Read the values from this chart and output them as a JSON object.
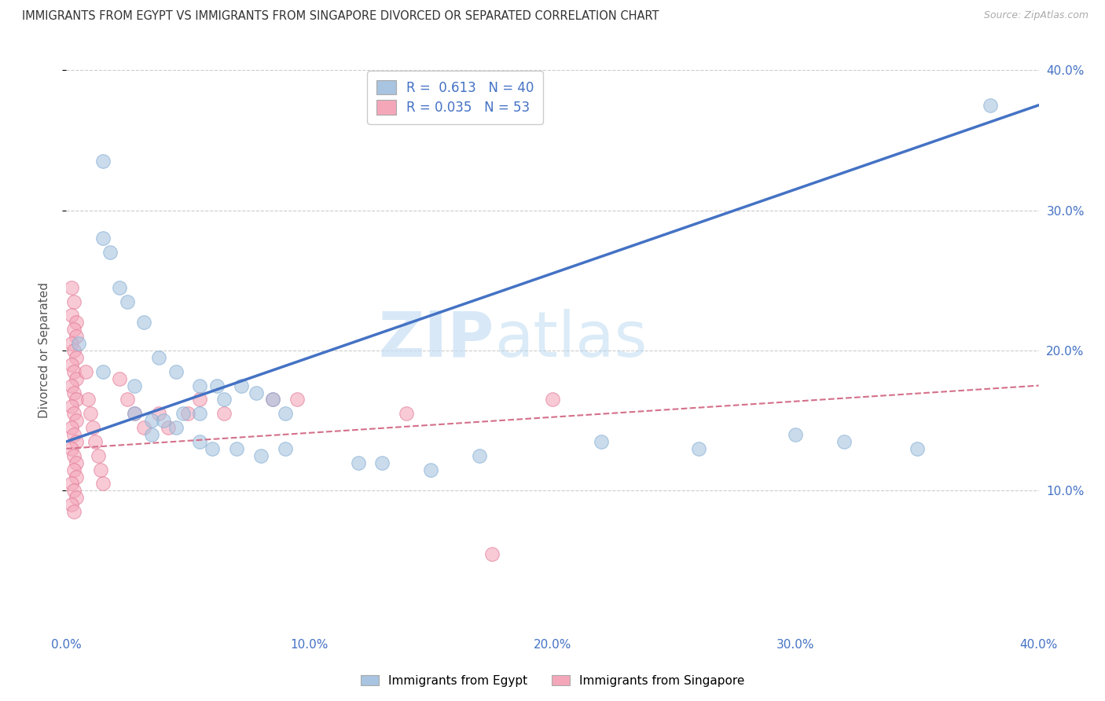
{
  "title": "IMMIGRANTS FROM EGYPT VS IMMIGRANTS FROM SINGAPORE DIVORCED OR SEPARATED CORRELATION CHART",
  "source": "Source: ZipAtlas.com",
  "ylabel": "Divorced or Separated",
  "xlim": [
    0.0,
    0.4
  ],
  "ylim": [
    0.0,
    0.4
  ],
  "xticks": [
    0.0,
    0.1,
    0.2,
    0.3,
    0.4
  ],
  "yticks": [
    0.1,
    0.2,
    0.3,
    0.4
  ],
  "xticklabels": [
    "0.0%",
    "10.0%",
    "20.0%",
    "30.0%",
    "40.0%"
  ],
  "yticklabels": [
    "10.0%",
    "20.0%",
    "30.0%",
    "40.0%"
  ],
  "egypt_color": "#a8c4e0",
  "egypt_edge_color": "#7aa8d0",
  "singapore_color": "#f4a7b9",
  "singapore_edge_color": "#e07090",
  "egypt_line_color": "#4472c4",
  "singapore_line_color": "#d4708a",
  "egypt_R": 0.613,
  "egypt_N": 40,
  "singapore_R": 0.035,
  "singapore_N": 53,
  "watermark_zip": "ZIP",
  "watermark_atlas": "atlas",
  "background_color": "#ffffff",
  "grid_color": "#cccccc",
  "tick_color": "#4472c4",
  "egypt_line": [
    [
      0.0,
      0.135
    ],
    [
      0.4,
      0.375
    ]
  ],
  "singapore_line": [
    [
      0.0,
      0.13
    ],
    [
      0.4,
      0.175
    ]
  ],
  "egypt_scatter": [
    [
      0.015,
      0.335
    ],
    [
      0.015,
      0.28
    ],
    [
      0.018,
      0.27
    ],
    [
      0.022,
      0.245
    ],
    [
      0.025,
      0.235
    ],
    [
      0.005,
      0.205
    ],
    [
      0.032,
      0.22
    ],
    [
      0.038,
      0.195
    ],
    [
      0.015,
      0.185
    ],
    [
      0.028,
      0.175
    ],
    [
      0.045,
      0.185
    ],
    [
      0.055,
      0.175
    ],
    [
      0.062,
      0.175
    ],
    [
      0.065,
      0.165
    ],
    [
      0.072,
      0.175
    ],
    [
      0.078,
      0.17
    ],
    [
      0.085,
      0.165
    ],
    [
      0.09,
      0.155
    ],
    [
      0.028,
      0.155
    ],
    [
      0.035,
      0.15
    ],
    [
      0.04,
      0.15
    ],
    [
      0.048,
      0.155
    ],
    [
      0.055,
      0.155
    ],
    [
      0.035,
      0.14
    ],
    [
      0.045,
      0.145
    ],
    [
      0.055,
      0.135
    ],
    [
      0.06,
      0.13
    ],
    [
      0.07,
      0.13
    ],
    [
      0.09,
      0.13
    ],
    [
      0.08,
      0.125
    ],
    [
      0.12,
      0.12
    ],
    [
      0.13,
      0.12
    ],
    [
      0.15,
      0.115
    ],
    [
      0.17,
      0.125
    ],
    [
      0.22,
      0.135
    ],
    [
      0.26,
      0.13
    ],
    [
      0.3,
      0.14
    ],
    [
      0.32,
      0.135
    ],
    [
      0.35,
      0.13
    ],
    [
      0.38,
      0.375
    ]
  ],
  "singapore_scatter": [
    [
      0.002,
      0.245
    ],
    [
      0.003,
      0.235
    ],
    [
      0.002,
      0.225
    ],
    [
      0.004,
      0.22
    ],
    [
      0.003,
      0.215
    ],
    [
      0.004,
      0.21
    ],
    [
      0.002,
      0.205
    ],
    [
      0.003,
      0.2
    ],
    [
      0.004,
      0.195
    ],
    [
      0.002,
      0.19
    ],
    [
      0.003,
      0.185
    ],
    [
      0.004,
      0.18
    ],
    [
      0.002,
      0.175
    ],
    [
      0.003,
      0.17
    ],
    [
      0.004,
      0.165
    ],
    [
      0.002,
      0.16
    ],
    [
      0.003,
      0.155
    ],
    [
      0.004,
      0.15
    ],
    [
      0.002,
      0.145
    ],
    [
      0.003,
      0.14
    ],
    [
      0.004,
      0.135
    ],
    [
      0.002,
      0.13
    ],
    [
      0.003,
      0.125
    ],
    [
      0.004,
      0.12
    ],
    [
      0.003,
      0.115
    ],
    [
      0.004,
      0.11
    ],
    [
      0.002,
      0.105
    ],
    [
      0.003,
      0.1
    ],
    [
      0.004,
      0.095
    ],
    [
      0.002,
      0.09
    ],
    [
      0.003,
      0.085
    ],
    [
      0.008,
      0.185
    ],
    [
      0.009,
      0.165
    ],
    [
      0.01,
      0.155
    ],
    [
      0.011,
      0.145
    ],
    [
      0.012,
      0.135
    ],
    [
      0.013,
      0.125
    ],
    [
      0.014,
      0.115
    ],
    [
      0.015,
      0.105
    ],
    [
      0.022,
      0.18
    ],
    [
      0.025,
      0.165
    ],
    [
      0.028,
      0.155
    ],
    [
      0.032,
      0.145
    ],
    [
      0.038,
      0.155
    ],
    [
      0.042,
      0.145
    ],
    [
      0.05,
      0.155
    ],
    [
      0.055,
      0.165
    ],
    [
      0.065,
      0.155
    ],
    [
      0.085,
      0.165
    ],
    [
      0.095,
      0.165
    ],
    [
      0.14,
      0.155
    ],
    [
      0.175,
      0.055
    ],
    [
      0.2,
      0.165
    ]
  ]
}
